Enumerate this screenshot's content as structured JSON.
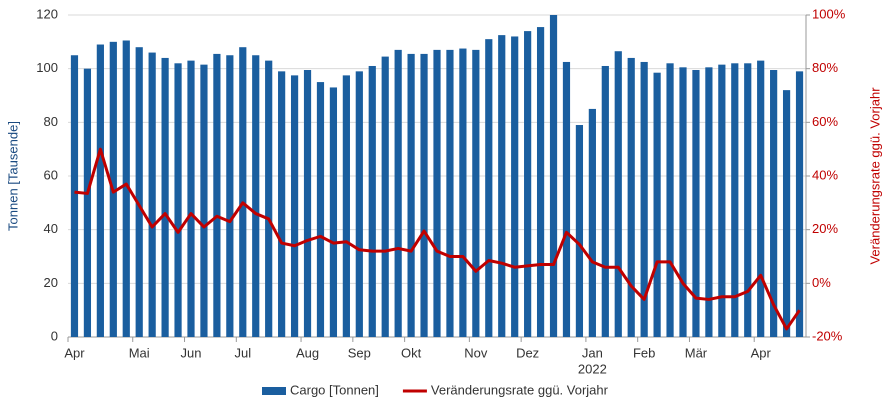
{
  "chart_data": {
    "type": "bar_line",
    "ylabel": "Tonnen [Tausende]",
    "y2label": "Veränderungsrate ggü. Vorjahr",
    "categories": [
      "Apr",
      null,
      null,
      null,
      null,
      "Mai",
      null,
      null,
      null,
      "Jun",
      null,
      null,
      null,
      "Jul",
      null,
      null,
      null,
      null,
      "Aug",
      null,
      null,
      null,
      "Sep",
      null,
      null,
      null,
      "Okt",
      null,
      null,
      null,
      null,
      "Nov",
      null,
      null,
      null,
      "Dez",
      null,
      null,
      null,
      null,
      "Jan",
      null,
      null,
      null,
      "Feb",
      null,
      null,
      null,
      "Mär",
      null,
      null,
      null,
      null,
      "Apr",
      null,
      null,
      null
    ],
    "year_label": "2022",
    "ylim": [
      0,
      120
    ],
    "yticks": [
      0,
      20,
      40,
      60,
      80,
      100,
      120
    ],
    "y2lim": [
      -20,
      100
    ],
    "y2ticks": [
      {
        "value": -20,
        "label": "-20%"
      },
      {
        "value": 0,
        "label": "0%"
      },
      {
        "value": 20,
        "label": "20%"
      },
      {
        "value": 40,
        "label": "40%"
      },
      {
        "value": 60,
        "label": "60%"
      },
      {
        "value": 80,
        "label": "80%"
      },
      {
        "value": 100,
        "label": "100%"
      }
    ],
    "grid": true,
    "legend": "bottom",
    "series": [
      {
        "name": "Cargo [Tonnen]",
        "type": "bar",
        "color": "#1a5e9f",
        "values": [
          105,
          100,
          109,
          110,
          110.5,
          108,
          106,
          104,
          102,
          103,
          101.5,
          105.5,
          105,
          108,
          105,
          103,
          99,
          97.5,
          99.5,
          95,
          93,
          97.5,
          99,
          101,
          104.5,
          107,
          105.5,
          105.5,
          107,
          107,
          107.5,
          107,
          111,
          112.5,
          112,
          114,
          115.5,
          120,
          102.5,
          79,
          85,
          101,
          106.5,
          104,
          102.5,
          98.5,
          102,
          100.5,
          99.5,
          100.5,
          101.5,
          102,
          102,
          103,
          99.5,
          92,
          99
        ]
      },
      {
        "name": "Veränderungsrate ggü. Vorjahr",
        "type": "line",
        "axis": "y2",
        "color": "#c00000",
        "values": [
          34,
          33.5,
          50,
          34,
          37,
          29,
          21,
          26,
          19,
          26,
          21,
          25,
          23,
          30,
          26,
          24,
          15,
          14,
          16,
          17.5,
          15,
          15.5,
          12.5,
          12,
          12,
          13,
          12,
          19.5,
          12,
          10,
          10,
          4.5,
          8.5,
          7.5,
          6,
          6.5,
          7,
          7,
          19,
          14.5,
          8,
          6,
          6,
          -1,
          -6,
          8,
          8,
          0,
          -5.5,
          -6,
          -5,
          -5,
          -3,
          3,
          -8,
          -17,
          -10
        ]
      }
    ]
  }
}
